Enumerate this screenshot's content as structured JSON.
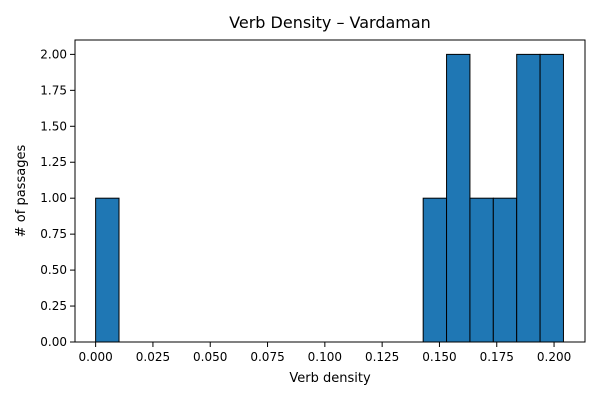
{
  "chart_data": {
    "type": "bar",
    "title": "Verb Density – Vardaman",
    "xlabel": "Verb density",
    "ylabel": "# of passages",
    "xlim": [
      -0.009,
      0.2135
    ],
    "ylim": [
      0,
      2.1
    ],
    "x_ticks": [
      0.0,
      0.025,
      0.05,
      0.075,
      0.1,
      0.125,
      0.15,
      0.175,
      0.2
    ],
    "x_tick_labels": [
      "0.000",
      "0.025",
      "0.050",
      "0.075",
      "0.100",
      "0.125",
      "0.150",
      "0.175",
      "0.200"
    ],
    "y_ticks": [
      0,
      0.25,
      0.5,
      0.75,
      1.0,
      1.25,
      1.5,
      1.75,
      2.0
    ],
    "y_tick_labels": [
      "0.00",
      "0.25",
      "0.50",
      "0.75",
      "1.00",
      "1.25",
      "1.50",
      "1.75",
      "2.00"
    ],
    "bins": [
      {
        "start": 0.0,
        "end": 0.0102,
        "count": 1
      },
      {
        "start": 0.1429,
        "end": 0.1531,
        "count": 1
      },
      {
        "start": 0.1531,
        "end": 0.1633,
        "count": 2
      },
      {
        "start": 0.1633,
        "end": 0.1735,
        "count": 1
      },
      {
        "start": 0.1735,
        "end": 0.1837,
        "count": 1
      },
      {
        "start": 0.1837,
        "end": 0.1939,
        "count": 2
      },
      {
        "start": 0.1939,
        "end": 0.2041,
        "count": 2
      }
    ],
    "bar_color": "#1f77b4",
    "edge_color": "#000000",
    "grid": false
  }
}
